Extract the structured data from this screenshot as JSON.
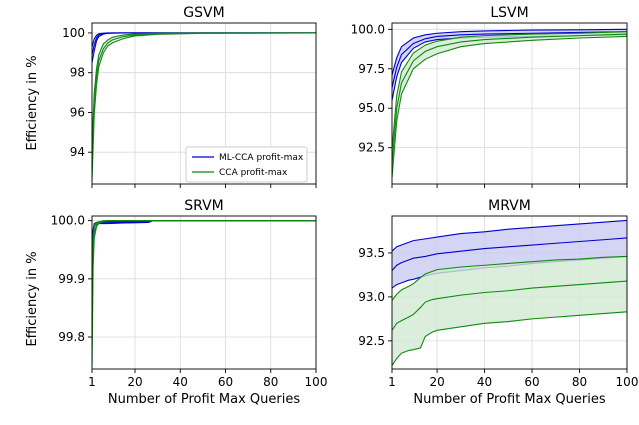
{
  "figure": {
    "xlabel": "Number of Profit Max Queries",
    "ylabel": "Efficiency in %"
  },
  "colors": {
    "ml_cca": "#0000cc",
    "ml_cca_fill": "#c9cbf3",
    "cca": "#118811",
    "cca_fill": "#d2ead2",
    "grid": "#d9d9d9"
  },
  "legend": {
    "entries": [
      "ML-CCA profit-max",
      "CCA profit-max"
    ],
    "placement": "lower-right of GSVM panel"
  },
  "chart_data": [
    {
      "type": "line",
      "title": "GSVM",
      "ylabel": "Efficiency in %",
      "xlabel": "",
      "xlim": [
        1,
        100
      ],
      "ylim": [
        92.4,
        100.5
      ],
      "xticks": [
        1,
        20,
        40,
        60,
        80,
        100
      ],
      "yticks": [
        94,
        96,
        98,
        100
      ],
      "ytick_labels": [
        "94",
        "96",
        "98",
        "100"
      ],
      "grid": true,
      "series": [
        {
          "name": "ML-CCA profit-max",
          "color": "#0000cc",
          "x": [
            1,
            2,
            3,
            4,
            6,
            8,
            10,
            15,
            20,
            30,
            50,
            100
          ],
          "mean": [
            98.9,
            99.4,
            99.75,
            99.9,
            99.97,
            99.99,
            100.0,
            100.0,
            100.0,
            100.0,
            100.0,
            100.0
          ],
          "lower": [
            98.5,
            99.1,
            99.6,
            99.82,
            99.94,
            99.98,
            99.99,
            100.0,
            100.0,
            100.0,
            100.0,
            100.0
          ],
          "upper": [
            99.3,
            99.7,
            99.88,
            99.96,
            99.99,
            100.0,
            100.0,
            100.0,
            100.0,
            100.0,
            100.0,
            100.0
          ]
        },
        {
          "name": "CCA profit-max",
          "color": "#118811",
          "x": [
            1,
            2,
            3,
            4,
            6,
            8,
            10,
            15,
            20,
            30,
            50,
            100
          ],
          "mean": [
            93.6,
            96.5,
            97.8,
            98.6,
            99.2,
            99.5,
            99.65,
            99.82,
            99.9,
            99.96,
            99.99,
            100.0
          ],
          "lower": [
            92.6,
            95.9,
            97.4,
            98.3,
            99.0,
            99.35,
            99.5,
            99.72,
            99.85,
            99.93,
            99.98,
            100.0
          ],
          "upper": [
            94.4,
            97.0,
            98.2,
            98.9,
            99.45,
            99.65,
            99.78,
            99.9,
            99.95,
            99.98,
            100.0,
            100.0
          ]
        }
      ]
    },
    {
      "type": "line",
      "title": "LSVM",
      "ylabel": "",
      "xlabel": "",
      "xlim": [
        1,
        100
      ],
      "ylim": [
        90.2,
        100.4
      ],
      "xticks": [
        1,
        20,
        40,
        60,
        80,
        100
      ],
      "yticks": [
        92.5,
        95.0,
        97.5,
        100.0
      ],
      "ytick_labels": [
        "92.5",
        "95.0",
        "97.5",
        "100.0"
      ],
      "grid": true,
      "series": [
        {
          "name": "ML-CCA profit-max",
          "color": "#0000cc",
          "x": [
            1,
            3,
            5,
            10,
            15,
            20,
            30,
            40,
            60,
            80,
            100
          ],
          "mean": [
            96.3,
            97.6,
            98.4,
            99.1,
            99.4,
            99.55,
            99.65,
            99.7,
            99.75,
            99.8,
            99.85
          ],
          "lower": [
            95.5,
            97.0,
            97.9,
            98.8,
            99.2,
            99.35,
            99.45,
            99.5,
            99.55,
            99.6,
            99.65
          ],
          "upper": [
            97.1,
            98.2,
            98.9,
            99.45,
            99.65,
            99.75,
            99.85,
            99.9,
            99.95,
            99.97,
            100.0
          ]
        },
        {
          "name": "CCA profit-max",
          "color": "#118811",
          "x": [
            1,
            3,
            5,
            10,
            15,
            20,
            30,
            40,
            60,
            80,
            100
          ],
          "mean": [
            91.5,
            95.0,
            96.6,
            98.0,
            98.6,
            98.9,
            99.2,
            99.35,
            99.5,
            99.6,
            99.7
          ],
          "lower": [
            90.6,
            94.2,
            95.9,
            97.5,
            98.1,
            98.45,
            98.9,
            99.1,
            99.3,
            99.45,
            99.55
          ],
          "upper": [
            92.4,
            95.8,
            97.3,
            98.5,
            99.0,
            99.25,
            99.5,
            99.6,
            99.7,
            99.75,
            99.85
          ]
        }
      ]
    },
    {
      "type": "line",
      "title": "SRVM",
      "ylabel": "Efficiency in %",
      "xlabel": "Number of Profit Max Queries",
      "xlim": [
        1,
        100
      ],
      "ylim": [
        99.745,
        100.008
      ],
      "xticks": [
        1,
        20,
        40,
        60,
        80,
        100
      ],
      "xtick_labels": [
        "1",
        "20",
        "40",
        "60",
        "80",
        "100"
      ],
      "yticks": [
        99.8,
        99.9,
        100.0
      ],
      "ytick_labels": [
        "99.8",
        "99.9",
        "100.0"
      ],
      "grid": true,
      "series": [
        {
          "name": "ML-CCA profit-max",
          "color": "#0000cc",
          "x": [
            1,
            1.5,
            2,
            3,
            4,
            5,
            6,
            8,
            15,
            26,
            28,
            40,
            100
          ],
          "mean": [
            99.93,
            99.975,
            99.99,
            99.994,
            99.996,
            99.996,
            99.996,
            99.996,
            99.997,
            99.998,
            100.0,
            100.0,
            100.0
          ],
          "lower": [
            99.915,
            99.965,
            99.985,
            99.992,
            99.995,
            99.995,
            99.995,
            99.995,
            99.996,
            99.997,
            100.0,
            100.0,
            100.0
          ],
          "upper": [
            99.945,
            99.985,
            99.995,
            99.997,
            99.998,
            99.998,
            99.998,
            99.998,
            99.998,
            99.999,
            100.0,
            100.0,
            100.0
          ]
        },
        {
          "name": "CCA profit-max",
          "color": "#118811",
          "x": [
            1,
            1.5,
            2,
            3,
            4,
            5,
            6,
            8,
            10,
            20,
            40,
            100
          ],
          "mean": [
            99.83,
            99.95,
            99.98,
            99.993,
            99.997,
            99.998,
            99.999,
            100.0,
            100.0,
            100.0,
            100.0,
            100.0
          ],
          "lower": [
            99.75,
            99.92,
            99.97,
            99.99,
            99.995,
            99.997,
            99.998,
            100.0,
            100.0,
            100.0,
            100.0,
            100.0
          ],
          "upper": [
            99.88,
            99.97,
            99.99,
            99.996,
            99.998,
            99.999,
            100.0,
            100.0,
            100.0,
            100.0,
            100.0,
            100.0
          ]
        }
      ]
    },
    {
      "type": "line",
      "title": "MRVM",
      "ylabel": "",
      "xlabel": "Number of Profit Max Queries",
      "xlim": [
        1,
        100
      ],
      "ylim": [
        92.18,
        93.92
      ],
      "xticks": [
        1,
        20,
        40,
        60,
        80,
        100
      ],
      "xtick_labels": [
        "1",
        "20",
        "40",
        "60",
        "80",
        "100"
      ],
      "yticks": [
        92.5,
        93.0,
        93.5
      ],
      "ytick_labels": [
        "92.5",
        "93.0",
        "93.5"
      ],
      "grid": true,
      "series": [
        {
          "name": "ML-CCA profit-max",
          "color": "#0000cc",
          "x": [
            1,
            3,
            5,
            8,
            10,
            15,
            20,
            30,
            40,
            50,
            60,
            70,
            80,
            90,
            100
          ],
          "mean": [
            93.3,
            93.36,
            93.39,
            93.42,
            93.44,
            93.46,
            93.49,
            93.52,
            93.55,
            93.57,
            93.59,
            93.61,
            93.63,
            93.65,
            93.67
          ],
          "lower": [
            93.1,
            93.14,
            93.16,
            93.19,
            93.2,
            93.24,
            93.27,
            93.3,
            93.33,
            93.35,
            93.38,
            93.4,
            93.42,
            93.44,
            93.46
          ],
          "upper": [
            93.52,
            93.57,
            93.59,
            93.62,
            93.64,
            93.66,
            93.68,
            93.72,
            93.74,
            93.77,
            93.79,
            93.81,
            93.83,
            93.85,
            93.87
          ]
        },
        {
          "name": "CCA profit-max",
          "color": "#118811",
          "x": [
            1,
            3,
            5,
            8,
            10,
            13,
            15,
            18,
            20,
            30,
            40,
            50,
            60,
            70,
            80,
            90,
            100
          ],
          "mean": [
            92.62,
            92.7,
            92.73,
            92.77,
            92.8,
            92.88,
            92.94,
            92.97,
            92.98,
            93.02,
            93.05,
            93.07,
            93.1,
            93.12,
            93.14,
            93.16,
            93.18
          ],
          "lower": [
            92.22,
            92.3,
            92.36,
            92.39,
            92.4,
            92.42,
            92.55,
            92.6,
            92.62,
            92.66,
            92.7,
            92.72,
            92.75,
            92.77,
            92.79,
            92.81,
            92.83
          ],
          "upper": [
            92.96,
            93.03,
            93.08,
            93.12,
            93.15,
            93.22,
            93.26,
            93.29,
            93.31,
            93.34,
            93.36,
            93.38,
            93.4,
            93.42,
            93.43,
            93.45,
            93.46
          ]
        }
      ]
    }
  ]
}
